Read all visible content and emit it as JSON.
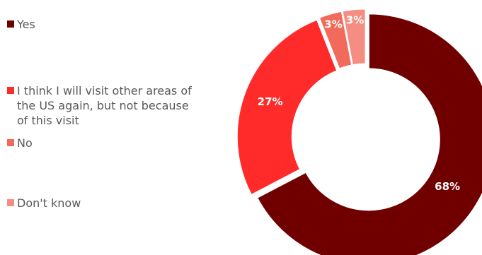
{
  "chart_data": {
    "type": "pie",
    "variant": "donut",
    "title": "",
    "categories": [
      "Yes",
      "I think I will visit other areas of the US again, but not because of this visit",
      "No",
      "Don't know"
    ],
    "values": [
      68,
      27,
      3,
      3
    ],
    "data_labels": [
      "68%",
      "27%",
      "3%",
      "3%"
    ],
    "colors": [
      "#700000",
      "#ff2a2a",
      "#f26a5b",
      "#f58d82"
    ],
    "label_colors": [
      "#ffffff",
      "#ffffff",
      "#ffffff",
      "#ffffff"
    ],
    "legend_placement": "left"
  }
}
